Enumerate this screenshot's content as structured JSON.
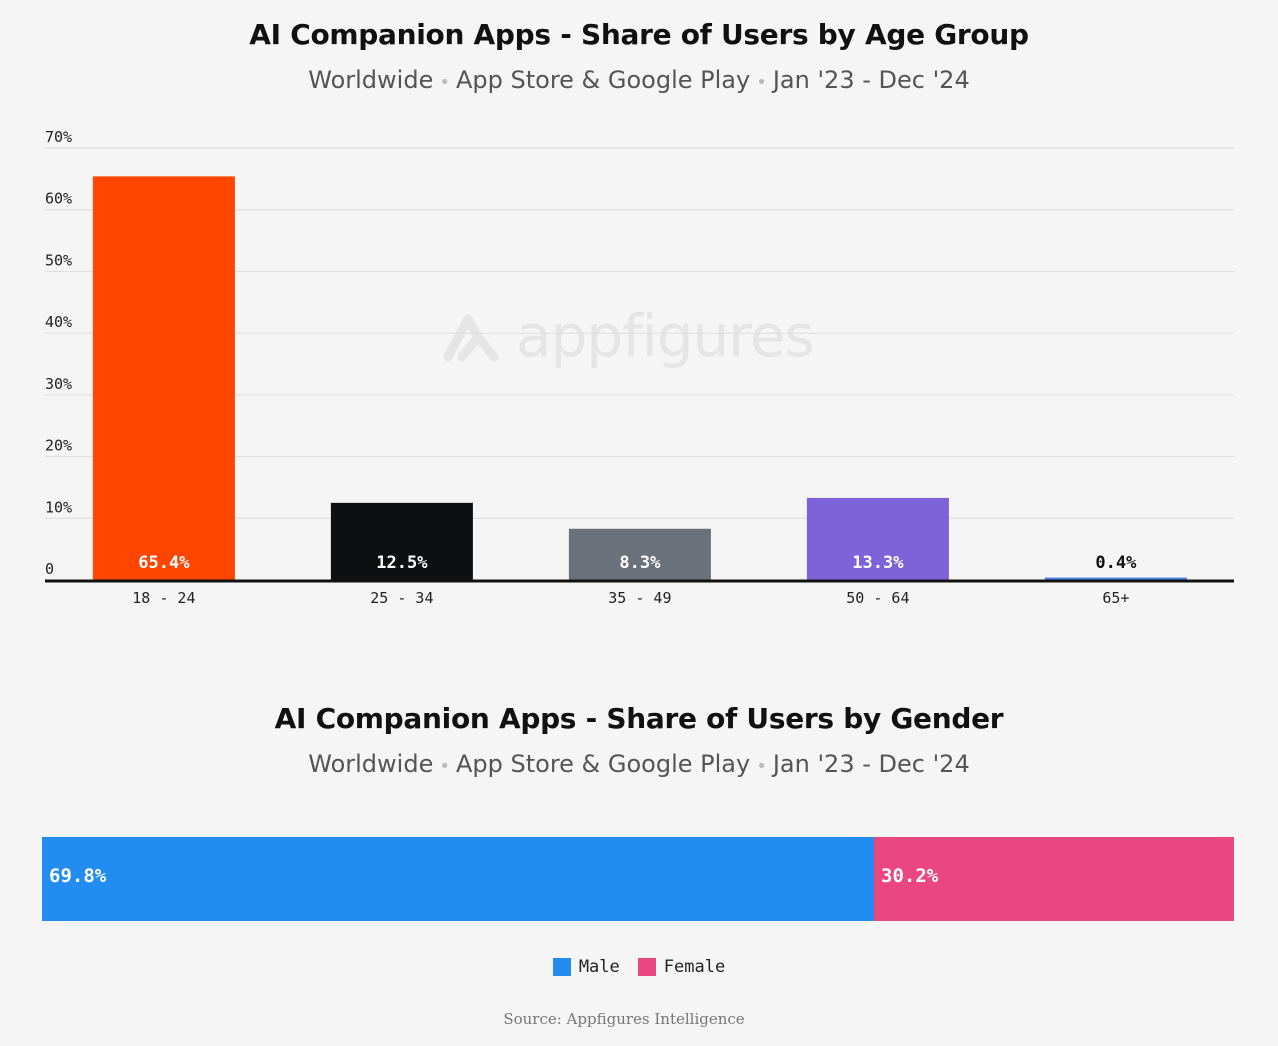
{
  "colors": {
    "age": [
      "#ff4500",
      "#0e0f11",
      "#6b717b",
      "#7e63d8",
      "#4a86e8"
    ],
    "male": "#228cf0",
    "female": "#ea4781",
    "grid": "#dcdcdc",
    "axis": "#111111"
  },
  "watermark": {
    "text": "appfigures",
    "icon": "appfigures-logo-icon"
  },
  "source": "Source: Appfigures Intelligence",
  "chart_data": [
    {
      "type": "bar",
      "title": "AI Companion Apps - Share of Users by Age Group",
      "subtitle_parts": [
        "Worldwide",
        "App Store & Google Play",
        "Jan '23 - Dec '24"
      ],
      "subtitle_separator": "•",
      "categories": [
        "18 - 24",
        "25 - 34",
        "35 - 49",
        "50 - 64",
        "65+"
      ],
      "values": [
        65.4,
        12.5,
        8.3,
        13.3,
        0.4
      ],
      "data_labels": [
        "65.4%",
        "12.5%",
        "8.3%",
        "13.3%",
        "0.4%"
      ],
      "yticks": [
        "0",
        "10%",
        "20%",
        "30%",
        "40%",
        "50%",
        "60%",
        "70%"
      ],
      "ylim": [
        0,
        70
      ],
      "xlabel": "",
      "ylabel": "",
      "grid": true
    },
    {
      "type": "bar",
      "orientation": "horizontal-stacked",
      "title": "AI Companion Apps - Share of Users by Gender",
      "subtitle_parts": [
        "Worldwide",
        "App Store & Google Play",
        "Jan '23 - Dec '24"
      ],
      "subtitle_separator": "•",
      "series": [
        {
          "name": "Male",
          "values": [
            69.8
          ],
          "label": "69.8%"
        },
        {
          "name": "Female",
          "values": [
            30.2
          ],
          "label": "30.2%"
        }
      ],
      "legend": [
        "Male",
        "Female"
      ],
      "legend_position": "bottom-center"
    }
  ]
}
